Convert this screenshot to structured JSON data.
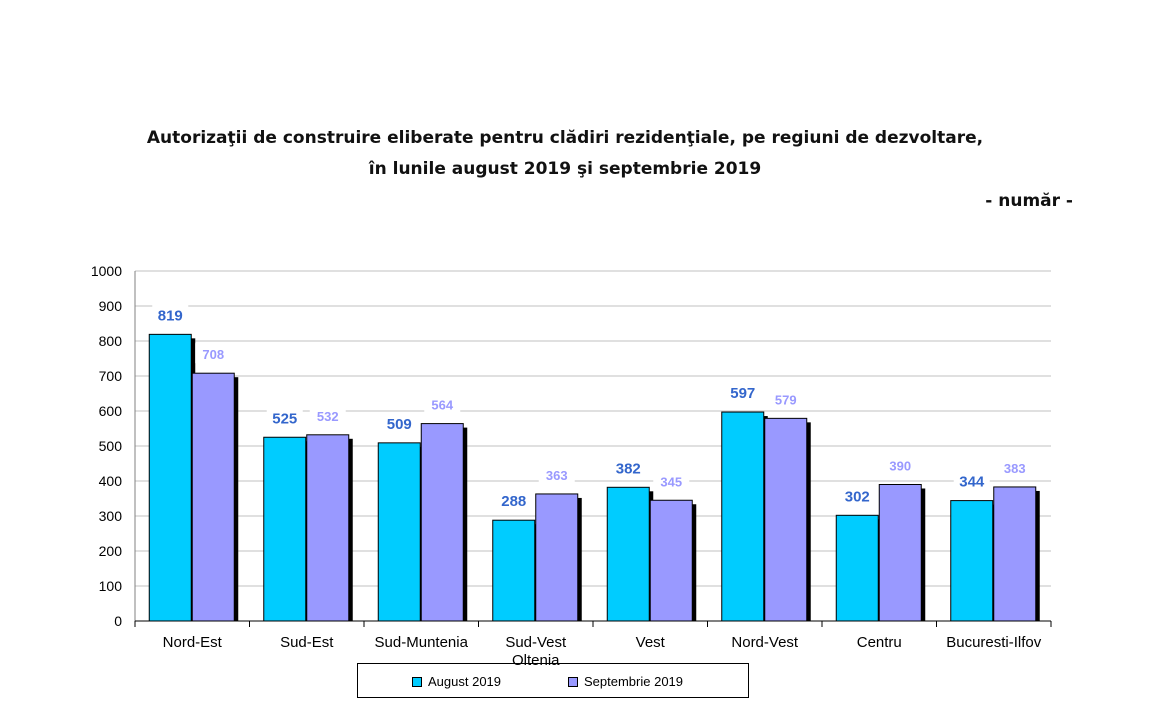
{
  "title_line1": "Autorizaţii de construire eliberate pentru clădiri rezidenţiale, pe regiuni de dezvoltare,",
  "title_line2": "în lunile august 2019 şi septembrie 2019",
  "unit_label": "- număr -",
  "colors": {
    "august": "#00CCFF",
    "septembrie": "#9999FF",
    "august_label": "#3366CC",
    "septembrie_label": "#9999FF",
    "grid": "#C0C0C0"
  },
  "chart_data": {
    "type": "bar",
    "categories": [
      "Nord-Est",
      "Sud-Est",
      "Sud-Muntenia",
      "Sud-Vest Oltenia",
      "Vest",
      "Nord-Vest",
      "Centru",
      "Bucuresti-Ilfov"
    ],
    "series": [
      {
        "name": "August 2019",
        "values": [
          819,
          525,
          509,
          288,
          382,
          597,
          302,
          344
        ]
      },
      {
        "name": "Septembrie 2019",
        "values": [
          708,
          532,
          564,
          363,
          345,
          579,
          390,
          383
        ]
      }
    ],
    "ylim": [
      0,
      1000
    ],
    "yticks": [
      0,
      100,
      200,
      300,
      400,
      500,
      600,
      700,
      800,
      900,
      1000
    ],
    "grid": true,
    "legend": "bottom"
  }
}
